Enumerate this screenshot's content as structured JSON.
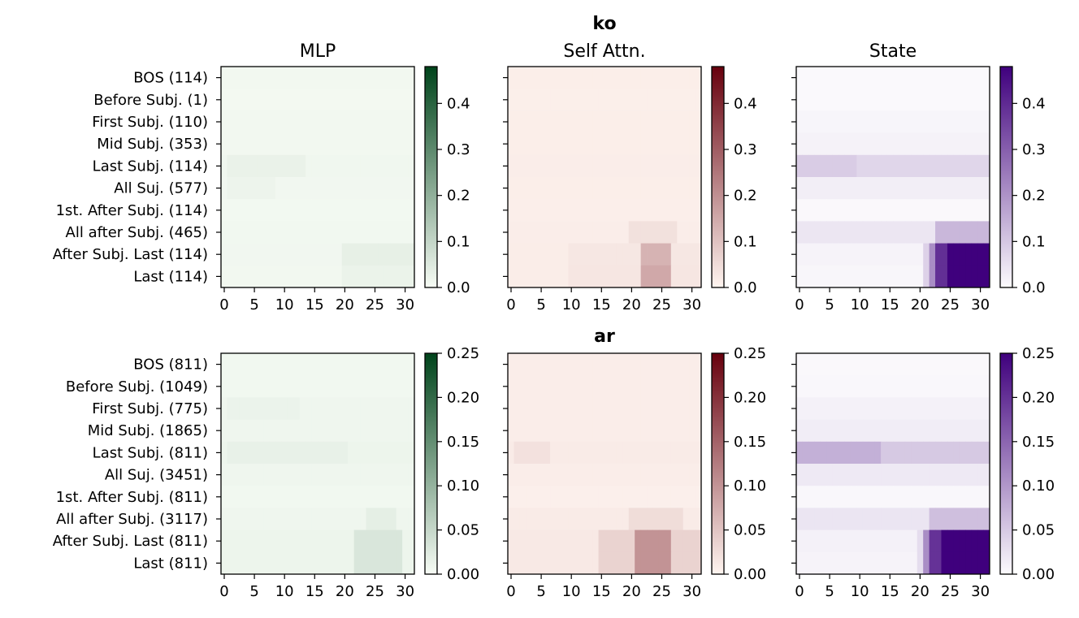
{
  "chart_data": {
    "type": "heatmap",
    "column_titles": [
      "MLP",
      "Self Attn.",
      "State"
    ],
    "x_ticks": [
      "0",
      "5",
      "10",
      "15",
      "20",
      "25",
      "30"
    ],
    "x_tick_values": [
      0,
      5,
      10,
      15,
      20,
      25,
      30
    ],
    "n_layers": 32,
    "colormaps": [
      {
        "name": "Greens",
        "light": "#f7fcf5",
        "dark": "#00441b"
      },
      {
        "name": "Reds",
        "light": "#fff5f0",
        "dark": "#67000d"
      },
      {
        "name": "Purples",
        "light": "#fcfbfd",
        "dark": "#3f007d"
      }
    ],
    "rows": [
      {
        "title": "ko",
        "y_labels": [
          "BOS (114)",
          "Before Subj. (1)",
          "First Subj. (110)",
          "Mid Subj. (353)",
          "Last Subj. (114)",
          "All Suj. (577)",
          "1st. After Subj. (114)",
          "All after Subj. (465)",
          "After Subj. Last (114)",
          "Last (114)"
        ],
        "vmax": 0.48,
        "cbar_ticks": [
          "0.0",
          "0.1",
          "0.2",
          "0.3",
          "0.4"
        ],
        "cbar_tick_values": [
          0.0,
          0.1,
          0.2,
          0.3,
          0.4
        ],
        "panels": [
          {
            "module": "MLP",
            "base": [
              0.01,
              0.008,
              0.01,
              0.01,
              0.014,
              0.012,
              0.009,
              0.011,
              0.012,
              0.01
            ],
            "bumps": [
              {
                "token": 4,
                "from": 1,
                "to": 13,
                "value": 0.026
              },
              {
                "token": 5,
                "from": 1,
                "to": 8,
                "value": 0.02
              },
              {
                "token": 8,
                "from": 20,
                "to": 31,
                "value": 0.032
              },
              {
                "token": 9,
                "from": 20,
                "to": 31,
                "value": 0.024
              }
            ]
          },
          {
            "module": "Self Attn.",
            "base": [
              0.014,
              0.012,
              0.014,
              0.014,
              0.015,
              0.014,
              0.013,
              0.015,
              0.016,
              0.016
            ],
            "bumps": [
              {
                "token": 7,
                "from": 20,
                "to": 27,
                "value": 0.04
              },
              {
                "token": 8,
                "from": 10,
                "to": 31,
                "value": 0.028
              },
              {
                "token": 8,
                "from": 22,
                "to": 26,
                "value": 0.13
              },
              {
                "token": 9,
                "from": 10,
                "to": 31,
                "value": 0.03
              },
              {
                "token": 9,
                "from": 22,
                "to": 26,
                "value": 0.15
              }
            ]
          },
          {
            "module": "State",
            "base": [
              0.004,
              0.004,
              0.012,
              0.018,
              0.07,
              0.025,
              0.006,
              0.04,
              0.015,
              0.01
            ],
            "bumps": [
              {
                "token": 4,
                "from": 0,
                "to": 9,
                "value": 0.09
              },
              {
                "token": 7,
                "from": 23,
                "to": 31,
                "value": 0.13
              },
              {
                "token": 8,
                "from": 21,
                "to": 22,
                "value": 0.08
              },
              {
                "token": 8,
                "from": 22,
                "to": 23,
                "value": 0.21
              },
              {
                "token": 8,
                "from": 23,
                "to": 25,
                "value": 0.39
              },
              {
                "token": 8,
                "from": 25,
                "to": 31,
                "value": 0.48
              },
              {
                "token": 9,
                "from": 21,
                "to": 22,
                "value": 0.08
              },
              {
                "token": 9,
                "from": 22,
                "to": 23,
                "value": 0.21
              },
              {
                "token": 9,
                "from": 23,
                "to": 25,
                "value": 0.39
              },
              {
                "token": 9,
                "from": 25,
                "to": 31,
                "value": 0.48
              }
            ]
          }
        ]
      },
      {
        "title": "ar",
        "y_labels": [
          "BOS (811)",
          "Before Subj. (1049)",
          "First Subj. (775)",
          "Mid Subj. (1865)",
          "Last Subj. (811)",
          "All Suj. (3451)",
          "1st. After Subj. (811)",
          "All after Subj. (3117)",
          "After Subj. Last (811)",
          "Last (811)"
        ],
        "vmax": 0.25,
        "cbar_ticks": [
          "0.00",
          "0.05",
          "0.10",
          "0.15",
          "0.20",
          "0.25"
        ],
        "cbar_tick_values": [
          0.0,
          0.05,
          0.1,
          0.15,
          0.2,
          0.25
        ],
        "panels": [
          {
            "module": "MLP",
            "base": [
              0.006,
              0.006,
              0.008,
              0.008,
              0.01,
              0.008,
              0.006,
              0.008,
              0.01,
              0.01
            ],
            "bumps": [
              {
                "token": 2,
                "from": 1,
                "to": 12,
                "value": 0.012
              },
              {
                "token": 4,
                "from": 1,
                "to": 20,
                "value": 0.015
              },
              {
                "token": 8,
                "from": 22,
                "to": 29,
                "value": 0.03
              },
              {
                "token": 9,
                "from": 22,
                "to": 29,
                "value": 0.03
              },
              {
                "token": 7,
                "from": 24,
                "to": 28,
                "value": 0.018
              }
            ]
          },
          {
            "module": "Self Attn.",
            "base": [
              0.008,
              0.008,
              0.008,
              0.008,
              0.01,
              0.008,
              0.006,
              0.01,
              0.012,
              0.012
            ],
            "bumps": [
              {
                "token": 4,
                "from": 1,
                "to": 6,
                "value": 0.02
              },
              {
                "token": 7,
                "from": 20,
                "to": 28,
                "value": 0.025
              },
              {
                "token": 8,
                "from": 15,
                "to": 31,
                "value": 0.035
              },
              {
                "token": 8,
                "from": 21,
                "to": 26,
                "value": 0.1
              },
              {
                "token": 9,
                "from": 15,
                "to": 31,
                "value": 0.035
              },
              {
                "token": 9,
                "from": 21,
                "to": 26,
                "value": 0.1
              }
            ]
          },
          {
            "module": "State",
            "base": [
              0.003,
              0.004,
              0.01,
              0.014,
              0.05,
              0.018,
              0.004,
              0.022,
              0.01,
              0.008
            ],
            "bumps": [
              {
                "token": 4,
                "from": 0,
                "to": 13,
                "value": 0.075
              },
              {
                "token": 7,
                "from": 22,
                "to": 31,
                "value": 0.06
              },
              {
                "token": 8,
                "from": 20,
                "to": 21,
                "value": 0.03
              },
              {
                "token": 8,
                "from": 21,
                "to": 22,
                "value": 0.11
              },
              {
                "token": 8,
                "from": 22,
                "to": 24,
                "value": 0.2
              },
              {
                "token": 8,
                "from": 24,
                "to": 31,
                "value": 0.25
              },
              {
                "token": 9,
                "from": 20,
                "to": 21,
                "value": 0.03
              },
              {
                "token": 9,
                "from": 21,
                "to": 22,
                "value": 0.11
              },
              {
                "token": 9,
                "from": 22,
                "to": 24,
                "value": 0.2
              },
              {
                "token": 9,
                "from": 24,
                "to": 31,
                "value": 0.25
              }
            ]
          }
        ]
      }
    ]
  }
}
